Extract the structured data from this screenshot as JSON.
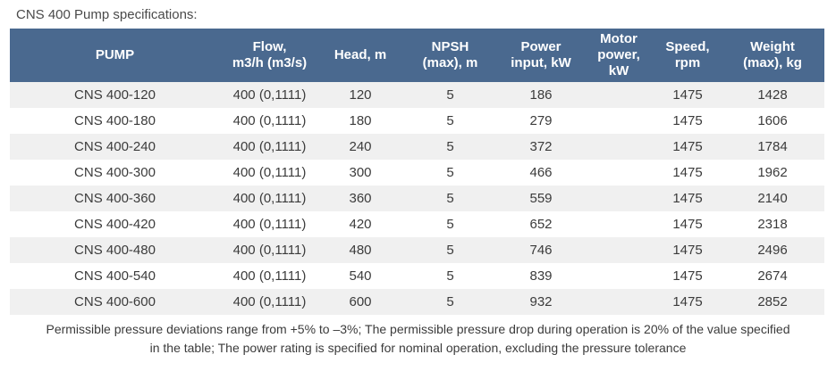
{
  "page": {
    "title": "CNS 400 Pump specifications:"
  },
  "table": {
    "columns": [
      "PUMP",
      "Flow,\nm3/h (m3/s)",
      "Head, m",
      "NPSH\n(max), m",
      "Power\ninput, kW",
      "Motor\npower,\nkW",
      "Speed,\nrpm",
      "Weight\n(max), kg"
    ],
    "rows": [
      [
        "CNS 400-120",
        "400 (0,1111)",
        "120",
        "5",
        "186",
        "",
        "1475",
        "1428"
      ],
      [
        "CNS 400-180",
        "400 (0,1111)",
        "180",
        "5",
        "279",
        "",
        "1475",
        "1606"
      ],
      [
        "CNS 400-240",
        "400 (0,1111)",
        "240",
        "5",
        "372",
        "",
        "1475",
        "1784"
      ],
      [
        "CNS 400-300",
        "400 (0,1111)",
        "300",
        "5",
        "466",
        "",
        "1475",
        "1962"
      ],
      [
        "CNS 400-360",
        "400 (0,1111)",
        "360",
        "5",
        "559",
        "",
        "1475",
        "2140"
      ],
      [
        "CNS 400-420",
        "400 (0,1111)",
        "420",
        "5",
        "652",
        "",
        "1475",
        "2318"
      ],
      [
        "CNS 400-480",
        "400 (0,1111)",
        "480",
        "5",
        "746",
        "",
        "1475",
        "2496"
      ],
      [
        "CNS 400-540",
        "400 (0,1111)",
        "540",
        "5",
        "839",
        "",
        "1475",
        "2674"
      ],
      [
        "CNS 400-600",
        "400 (0,1111)",
        "600",
        "5",
        "932",
        "",
        "1475",
        "2852"
      ]
    ]
  },
  "footer": {
    "note": "Permissible pressure deviations range from +5% to –3%; The permissible pressure drop during operation is 20% of the value specified in the table; The power rating is specified for nominal operation, excluding the pressure tolerance"
  },
  "colors": {
    "header_bg": "#4a698f",
    "header_text": "#ffffff",
    "row_alt_bg": "#f0f0f0",
    "body_text": "#3b3b3b"
  }
}
